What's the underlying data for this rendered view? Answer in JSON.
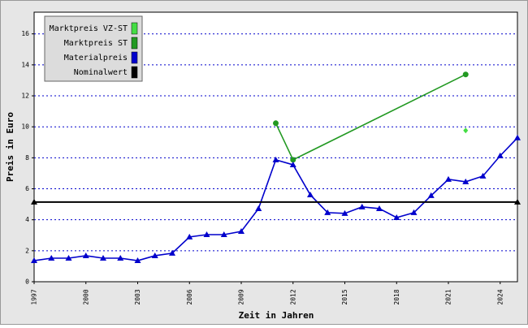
{
  "chart_data": {
    "type": "line",
    "xlabel": "Zeit in Jahren",
    "ylabel": "Preis in Euro",
    "xlim": [
      1997,
      2025
    ],
    "xticks": [
      1997,
      2000,
      2003,
      2006,
      2009,
      2012,
      2015,
      2018,
      2021,
      2024
    ],
    "ylim": [
      0,
      17.4
    ],
    "yticks": [
      0,
      2,
      4,
      6,
      8,
      10,
      12,
      14,
      16
    ],
    "grid": true,
    "legend": "upper left",
    "series": [
      {
        "name": "Marktpreis VZ-ST",
        "color": "#44dd44",
        "marker": "diamond",
        "x": [
          2022
        ],
        "values": [
          9.76
        ]
      },
      {
        "name": "Marktpreis ST",
        "color": "#229922",
        "marker": "circle",
        "x": [
          2011,
          2012,
          2022
        ],
        "values": [
          10.23,
          7.87,
          13.38
        ]
      },
      {
        "name": "Materialpreis",
        "color": "#0000cc",
        "marker": "triangle",
        "x": [
          1997,
          1998,
          1999,
          2000,
          2001,
          2002,
          2003,
          2004,
          2005,
          2006,
          2007,
          2008,
          2009,
          2010,
          2011,
          2012,
          2013,
          2014,
          2015,
          2016,
          2017,
          2018,
          2019,
          2020,
          2021,
          2022,
          2023,
          2024,
          2025
        ],
        "values": [
          1.36,
          1.52,
          1.52,
          1.68,
          1.52,
          1.52,
          1.36,
          1.68,
          1.84,
          2.89,
          3.04,
          3.04,
          3.25,
          4.72,
          7.87,
          7.55,
          5.61,
          4.46,
          4.41,
          4.83,
          4.72,
          4.14,
          4.46,
          5.56,
          6.61,
          6.45,
          6.82,
          8.13,
          9.29
        ]
      },
      {
        "name": "Nominalwert",
        "color": "#000000",
        "marker": "triangle",
        "x": [
          1997,
          2025
        ],
        "values": [
          5.14,
          5.14
        ]
      }
    ]
  }
}
